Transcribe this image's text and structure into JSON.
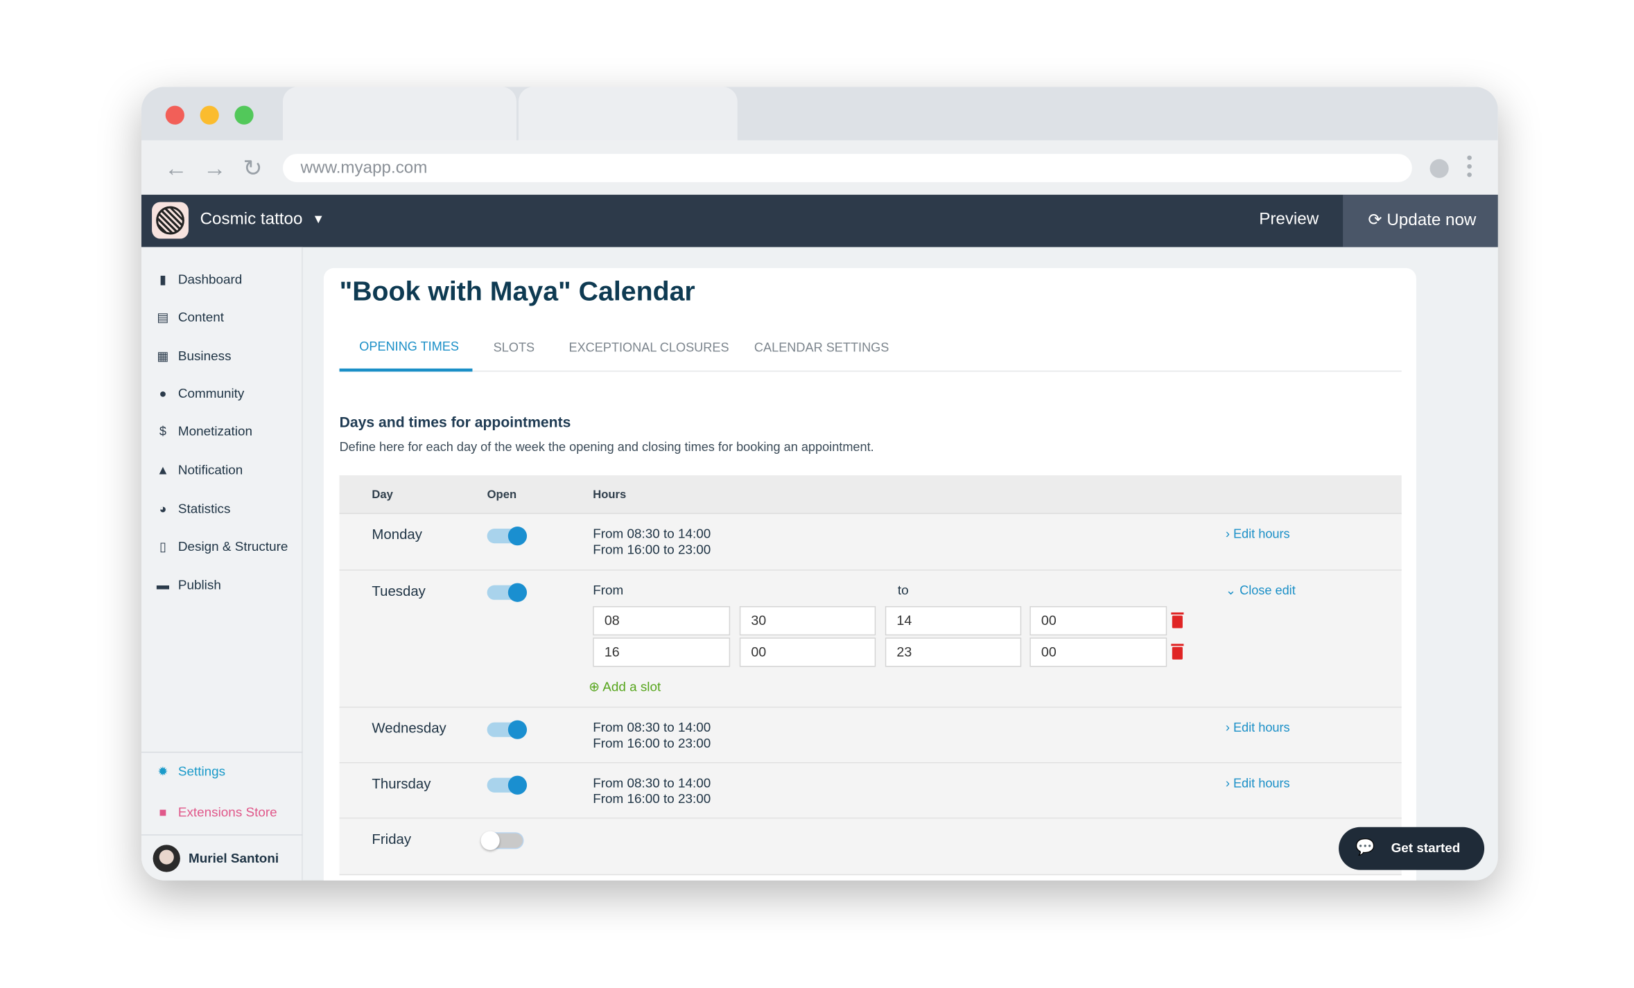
{
  "browser": {
    "url": "www.myapp.com"
  },
  "header": {
    "brand": "Cosmic tattoo",
    "preview": "Preview",
    "update": "Update now"
  },
  "sidebar": {
    "items": [
      {
        "label": "Dashboard",
        "icon": "bar-chart-icon"
      },
      {
        "label": "Content",
        "icon": "document-icon"
      },
      {
        "label": "Business",
        "icon": "store-icon"
      },
      {
        "label": "Community",
        "icon": "user-icon"
      },
      {
        "label": "Monetization",
        "icon": "dollar-icon"
      },
      {
        "label": "Notification",
        "icon": "bell-icon"
      },
      {
        "label": "Statistics",
        "icon": "pie-chart-icon"
      },
      {
        "label": "Design & Structure",
        "icon": "phone-icon"
      },
      {
        "label": "Publish",
        "icon": "publish-icon"
      }
    ],
    "settings": "Settings",
    "extensions": "Extensions Store",
    "user": "Muriel Santoni"
  },
  "page": {
    "title": "\"Book with Maya\" Calendar",
    "tabs": [
      "OPENING TIMES",
      "SLOTS",
      "EXCEPTIONAL CLOSURES",
      "CALENDAR SETTINGS"
    ],
    "section_title": "Days and times for appointments",
    "section_desc": "Define here for each day of the week the opening and closing times for booking an appointment.",
    "columns": [
      "Day",
      "Open",
      "Hours"
    ],
    "days": [
      {
        "day": "Monday",
        "open": true,
        "hours": [
          "From 08:30 to 14:00",
          "From 16:00 to 23:00"
        ],
        "action": "Edit hours"
      },
      {
        "day": "Tuesday",
        "open": true,
        "from_label": "From",
        "to_label": "to",
        "action": "Close edit",
        "slots": [
          [
            "08",
            "30",
            "14",
            "00"
          ],
          [
            "16",
            "00",
            "23",
            "00"
          ]
        ],
        "add_slot": "Add a slot"
      },
      {
        "day": "Wednesday",
        "open": true,
        "hours": [
          "From 08:30 to 14:00",
          "From 16:00 to 23:00"
        ],
        "action": "Edit hours"
      },
      {
        "day": "Thursday",
        "open": true,
        "hours": [
          "From 08:30 to 14:00",
          "From 16:00 to 23:00"
        ],
        "action": "Edit hours"
      },
      {
        "day": "Friday",
        "open": false
      }
    ]
  },
  "help": {
    "label": "Get started"
  },
  "colors": {
    "accent": "#1a8fc7",
    "header": "#2d3a4a",
    "delete": "#e02424",
    "add": "#56a51c",
    "extensions": "#e0588a"
  }
}
